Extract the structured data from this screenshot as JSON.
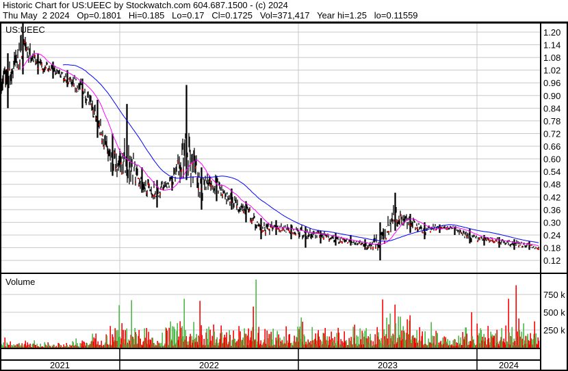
{
  "header": {
    "title": "Historic Chart for US:UEEC by Stockwatch.com 604.687.1500 - (c) 2024",
    "quote": "Thu May  2 2024   Op=0.1801   Hi=0.185   Lo=0.17   Cl=0.1725   Vol=371,417   Year hi=1.25   lo=0.11559"
  },
  "chart_data": [
    {
      "type": "line",
      "title": "US:UEEC",
      "subtype": "ohlc-bars",
      "ylim": [
        0.09,
        1.24
      ],
      "yticks": [
        "1.20",
        "1.14",
        "1.08",
        "1.02",
        "0.96",
        "0.90",
        "0.84",
        "0.78",
        "0.72",
        "0.66",
        "0.60",
        "0.54",
        "0.48",
        "0.42",
        "0.36",
        "0.30",
        "0.24",
        "0.18",
        "0.12"
      ],
      "y_axis": "right",
      "grid": true,
      "xticks": [
        "2021",
        "2022",
        "2023",
        "2024"
      ],
      "colors": {
        "bars": "#000000",
        "down_close": "#ff0000",
        "ma_short": "#ff00ff",
        "ma_long": "#0000ff"
      },
      "monthly": [
        {
          "month": "2021-05",
          "high": 1.1,
          "low": 0.84,
          "close": 0.98
        },
        {
          "month": "2021-06",
          "high": 1.25,
          "low": 1.0,
          "close": 1.12
        },
        {
          "month": "2021-07",
          "high": 1.1,
          "low": 1.0,
          "close": 1.05
        },
        {
          "month": "2021-08",
          "high": 1.06,
          "low": 0.98,
          "close": 1.02
        },
        {
          "month": "2021-09",
          "high": 1.02,
          "low": 0.94,
          "close": 0.98
        },
        {
          "month": "2021-10",
          "high": 0.98,
          "low": 0.84,
          "close": 0.93
        },
        {
          "month": "2021-11",
          "high": 0.88,
          "low": 0.7,
          "close": 0.78
        },
        {
          "month": "2021-12",
          "high": 0.72,
          "low": 0.52,
          "close": 0.58
        },
        {
          "month": "2022-01",
          "high": 0.86,
          "low": 0.52,
          "close": 0.6
        },
        {
          "month": "2022-02",
          "high": 0.56,
          "low": 0.44,
          "close": 0.48
        },
        {
          "month": "2022-03",
          "high": 0.5,
          "low": 0.37,
          "close": 0.44
        },
        {
          "month": "2022-04",
          "high": 0.52,
          "low": 0.45,
          "close": 0.5
        },
        {
          "month": "2022-05",
          "high": 0.95,
          "low": 0.5,
          "close": 0.66
        },
        {
          "month": "2022-06",
          "high": 0.56,
          "low": 0.36,
          "close": 0.46
        },
        {
          "month": "2022-07",
          "high": 0.52,
          "low": 0.4,
          "close": 0.48
        },
        {
          "month": "2022-08",
          "high": 0.46,
          "low": 0.36,
          "close": 0.4
        },
        {
          "month": "2022-09",
          "high": 0.4,
          "low": 0.3,
          "close": 0.36
        },
        {
          "month": "2022-10",
          "high": 0.32,
          "low": 0.22,
          "close": 0.26
        },
        {
          "month": "2022-11",
          "high": 0.31,
          "low": 0.24,
          "close": 0.28
        },
        {
          "month": "2022-12",
          "high": 0.29,
          "low": 0.22,
          "close": 0.26
        },
        {
          "month": "2023-01",
          "high": 0.28,
          "low": 0.18,
          "close": 0.25
        },
        {
          "month": "2023-02",
          "high": 0.26,
          "low": 0.2,
          "close": 0.24
        },
        {
          "month": "2023-03",
          "high": 0.25,
          "low": 0.19,
          "close": 0.22
        },
        {
          "month": "2023-04",
          "high": 0.24,
          "low": 0.19,
          "close": 0.21
        },
        {
          "month": "2023-05",
          "high": 0.22,
          "low": 0.17,
          "close": 0.19
        },
        {
          "month": "2023-06",
          "high": 0.3,
          "low": 0.12,
          "close": 0.2
        },
        {
          "month": "2023-07",
          "high": 0.44,
          "low": 0.26,
          "close": 0.34
        },
        {
          "month": "2023-08",
          "high": 0.34,
          "low": 0.25,
          "close": 0.3
        },
        {
          "month": "2023-09",
          "high": 0.3,
          "low": 0.22,
          "close": 0.26
        },
        {
          "month": "2023-10",
          "high": 0.29,
          "low": 0.25,
          "close": 0.28
        },
        {
          "month": "2023-11",
          "high": 0.28,
          "low": 0.24,
          "close": 0.27
        },
        {
          "month": "2023-12",
          "high": 0.27,
          "low": 0.2,
          "close": 0.23
        },
        {
          "month": "2024-01",
          "high": 0.24,
          "low": 0.19,
          "close": 0.22
        },
        {
          "month": "2024-02",
          "high": 0.23,
          "low": 0.18,
          "close": 0.21
        },
        {
          "month": "2024-03",
          "high": 0.22,
          "low": 0.17,
          "close": 0.2
        },
        {
          "month": "2024-04",
          "high": 0.21,
          "low": 0.17,
          "close": 0.19
        },
        {
          "month": "2024-05",
          "high": 0.185,
          "low": 0.17,
          "close": 0.1725
        }
      ]
    },
    {
      "type": "bar",
      "title": "Volume",
      "ylim": [
        0,
        1000000
      ],
      "yticks": [
        "750 k",
        "500 k",
        "250 k"
      ],
      "grid": true,
      "colors": {
        "up": "#4db848",
        "down": "#ff0000",
        "unchanged": "#a0a0a0"
      },
      "typical_monthly_k": [
        60,
        50,
        40,
        30,
        40,
        60,
        120,
        150,
        200,
        150,
        120,
        150,
        180,
        140,
        150,
        120,
        160,
        150,
        120,
        130,
        180,
        160,
        120,
        140,
        140,
        200,
        230,
        180,
        150,
        150,
        130,
        160,
        140,
        130,
        150,
        170,
        180
      ],
      "spikes": [
        {
          "date": "2021-12-30",
          "volume": 600000
        },
        {
          "date": "2022-01-25",
          "volume": 670000
        },
        {
          "date": "2022-05-10",
          "volume": 690000
        },
        {
          "date": "2022-06-12",
          "volume": 660000
        },
        {
          "date": "2022-09-30",
          "volume": 580000
        },
        {
          "date": "2022-10-05",
          "volume": 960000
        },
        {
          "date": "2023-06-20",
          "volume": 680000
        },
        {
          "date": "2023-12-20",
          "volume": 500000
        },
        {
          "date": "2024-03-05",
          "volume": 690000
        },
        {
          "date": "2024-03-20",
          "volume": 880000
        }
      ]
    }
  ]
}
